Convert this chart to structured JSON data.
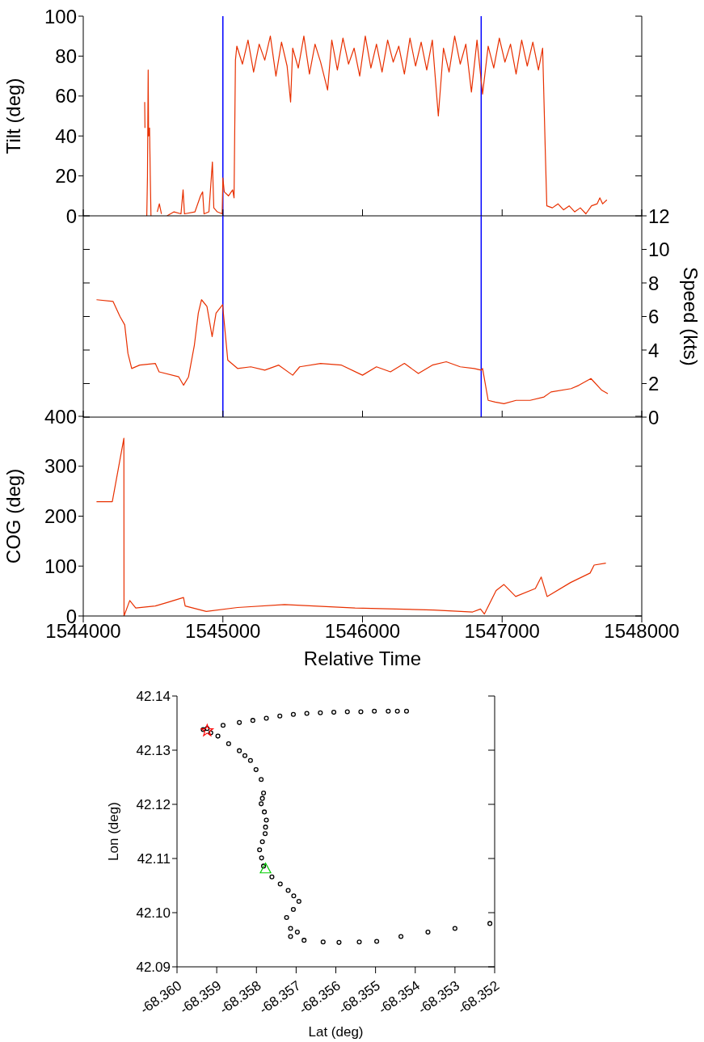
{
  "chart_data": [
    {
      "type": "line",
      "ylabel": "Tilt (deg)",
      "xlim": [
        1544000,
        1548000
      ],
      "xticks": [
        1544000,
        1545000,
        1546000,
        1547000,
        1548000
      ],
      "ylim": [
        0,
        100
      ],
      "yticks": [
        0,
        20,
        40,
        60,
        80,
        100
      ],
      "tick_labels": "y",
      "series": [
        {
          "color": "#e83000",
          "x": [
            1544440,
            1544442,
            1544444,
            1544455,
            1544460,
            1544465,
            1544468,
            1544475,
            1544480,
            1544485,
            1544500,
            1544530,
            1544545,
            1544560,
            1544580,
            1544600,
            1544650,
            1544700,
            1544715,
            1544725,
            1544800,
            1544840,
            1544855,
            1544865,
            1544900,
            1544925,
            1544935,
            1544960,
            1544995,
            1545000,
            1545010,
            1545040,
            1545070,
            1545080,
            1545090,
            1545100,
            1545140,
            1545180,
            1545220,
            1545260,
            1545300,
            1545340,
            1545380,
            1545420,
            1545460,
            1545485,
            1545500,
            1545540,
            1545580,
            1545620,
            1545660,
            1545700,
            1545750,
            1545780,
            1545820,
            1545860,
            1545900,
            1545940,
            1545980,
            1546020,
            1546060,
            1546100,
            1546140,
            1546180,
            1546220,
            1546260,
            1546300,
            1546340,
            1546380,
            1546420,
            1546460,
            1546500,
            1546543,
            1546580,
            1546620,
            1546660,
            1546700,
            1546740,
            1546780,
            1546820,
            1546860,
            1546900,
            1546940,
            1546980,
            1547020,
            1547060,
            1547100,
            1547140,
            1547180,
            1547220,
            1547260,
            1547290,
            1547310,
            1547320,
            1547360,
            1547400,
            1547440,
            1547480,
            1547520,
            1547560,
            1547600,
            1547640,
            1547680,
            1547700,
            1547720,
            1547750
          ],
          "values": [
            57,
            44,
            null,
            0,
            20,
            73,
            40,
            44,
            20,
            0,
            null,
            2,
            6,
            1,
            null,
            0,
            2,
            1,
            13,
            1,
            2,
            10,
            12,
            1,
            2,
            27,
            4,
            2,
            1,
            19,
            12,
            10,
            13,
            9,
            78,
            85,
            76,
            88,
            72,
            86,
            78,
            90,
            70,
            87,
            75,
            57,
            84,
            74,
            90,
            71,
            86,
            77,
            63,
            88,
            73,
            89,
            76,
            84,
            70,
            90,
            74,
            86,
            72,
            88,
            77,
            85,
            71,
            89,
            75,
            87,
            73,
            88,
            50,
            84,
            72,
            90,
            76,
            86,
            62,
            88,
            61,
            85,
            74,
            89,
            77,
            86,
            71,
            88,
            75,
            87,
            73,
            84,
            30,
            5,
            4,
            6,
            3,
            5,
            2,
            4,
            1,
            5,
            6,
            9,
            6,
            8
          ]
        }
      ],
      "ref_lines": [
        {
          "axis": "x",
          "value": 1545000,
          "color": "#0000ff"
        },
        {
          "axis": "x",
          "value": 1546850,
          "color": "#0000ff"
        }
      ]
    },
    {
      "type": "line",
      "ylabel": "Speed (kts)",
      "xlim": [
        1544000,
        1548000
      ],
      "xticks": [
        1544000,
        1545000,
        1546000,
        1547000,
        1548000
      ],
      "ylim": [
        0,
        12
      ],
      "yticks": [
        0,
        2,
        4,
        6,
        8,
        10,
        12
      ],
      "tick_labels": "y",
      "series": [
        {
          "color": "#e83000",
          "x": [
            1544095,
            1544213,
            1544263,
            1544297,
            1544320,
            1544347,
            1544404,
            1544516,
            1544543,
            1544684,
            1544718,
            1544754,
            1544796,
            1544824,
            1544847,
            1544886,
            1544923,
            1544951,
            1544998,
            1545035,
            1545105,
            1545200,
            1545300,
            1545400,
            1545500,
            1545550,
            1545700,
            1545850,
            1546000,
            1546100,
            1546200,
            1546300,
            1546400,
            1546500,
            1546600,
            1546700,
            1546800,
            1546850,
            1546860,
            1546900,
            1546950,
            1547013,
            1547100,
            1547200,
            1547300,
            1547350,
            1547494,
            1547550,
            1547636,
            1547714,
            1547757
          ],
          "values": [
            7.0,
            6.9,
            6.0,
            5.5,
            3.8,
            2.9,
            3.1,
            3.2,
            2.7,
            2.4,
            1.9,
            2.4,
            4.3,
            6.2,
            7.0,
            6.6,
            4.8,
            6.2,
            6.7,
            3.4,
            2.9,
            3.0,
            2.8,
            3.1,
            2.5,
            3.0,
            3.2,
            3.1,
            2.5,
            3.0,
            2.7,
            3.2,
            2.6,
            3.1,
            3.3,
            3.0,
            2.9,
            2.8,
            2.9,
            1.0,
            0.9,
            0.8,
            1.0,
            1.0,
            1.2,
            1.5,
            1.7,
            1.9,
            2.3,
            1.6,
            1.4
          ]
        }
      ],
      "ref_lines": [
        {
          "axis": "x",
          "value": 1545000,
          "color": "#0000ff"
        },
        {
          "axis": "x",
          "value": 1546850,
          "color": "#0000ff"
        }
      ]
    },
    {
      "type": "line",
      "ylabel": "COG (deg)",
      "xlabel": "Relative Time",
      "xlim": [
        1544000,
        1548000
      ],
      "xticks": [
        1544000,
        1545000,
        1546000,
        1547000,
        1548000
      ],
      "ylim": [
        0,
        400
      ],
      "yticks": [
        0,
        100,
        200,
        300,
        400
      ],
      "series": [
        {
          "color": "#e83000",
          "x": [
            1544095,
            1544208,
            1544291,
            1544292,
            1544333,
            1544376,
            1544516,
            1544600,
            1544718,
            1544730,
            1544881,
            1545105,
            1545442,
            1545947,
            1546508,
            1546789,
            1546845,
            1546873,
            1546957,
            1547013,
            1547097,
            1547238,
            1547280,
            1547322,
            1547490,
            1547630,
            1547659,
            1547743
          ],
          "values": [
            229,
            229,
            356,
            0,
            31,
            16,
            20,
            27,
            37,
            20,
            9,
            17,
            23,
            16,
            12,
            8,
            14,
            4,
            51,
            63,
            39,
            55,
            78,
            39,
            67,
            86,
            102,
            106
          ]
        }
      ]
    },
    {
      "type": "scatter",
      "xlabel": "Lat (deg)",
      "ylabel": "Lon (deg)",
      "xlim": [
        -68.36,
        -68.352
      ],
      "xticks": [
        {
          "value": -68.36,
          "label": "-68.360"
        },
        -68.359,
        -68.358,
        -68.357,
        -68.356,
        -68.355,
        -68.354,
        -68.353,
        -68.352
      ],
      "ylim": [
        42.09,
        42.14
      ],
      "yticks": [
        {
          "value": 42.09,
          "label": "42.09"
        },
        {
          "value": 42.1,
          "label": "42.10"
        },
        42.11,
        42.12,
        42.13,
        42.14
      ],
      "series": [
        {
          "color": "#000000",
          "marker": "circle",
          "x": [
            -68.35422,
            -68.35445,
            -68.35468,
            -68.35503,
            -68.35537,
            -68.35571,
            -68.35605,
            -68.35639,
            -68.35673,
            -68.35707,
            -68.35741,
            -68.35775,
            -68.35809,
            -68.35843,
            -68.35884,
            -68.35924,
            -68.35934,
            -68.35915,
            -68.35897,
            -68.3587,
            -68.35843,
            -68.35829,
            -68.35815,
            -68.35801,
            -68.35788,
            -68.35782,
            -68.35785,
            -68.35788,
            -68.3578,
            -68.35775,
            -68.35777,
            -68.35778,
            -68.35785,
            -68.35792,
            -68.35787,
            -68.35782,
            -68.35761,
            -68.3574,
            -68.3572,
            -68.35706,
            -68.35693,
            -68.35707,
            -68.35724,
            -68.35714,
            -68.35697,
            -68.35714,
            -68.3568,
            -68.35632,
            -68.35592,
            -68.35541,
            -68.35497,
            -68.35436,
            -68.35368,
            -68.353,
            -68.35212
          ],
          "values": [
            42.1372,
            42.1372,
            42.1372,
            42.1372,
            42.1371,
            42.1371,
            42.137,
            42.1369,
            42.1368,
            42.1366,
            42.1363,
            42.1359,
            42.1355,
            42.1351,
            42.1346,
            42.134,
            42.1338,
            42.1332,
            42.1326,
            42.1312,
            42.1299,
            42.129,
            42.1281,
            42.1264,
            42.1246,
            42.1221,
            42.1211,
            42.1201,
            42.1186,
            42.1171,
            42.1158,
            42.1146,
            42.1131,
            42.1116,
            42.1101,
            42.1086,
            42.1066,
            42.1053,
            42.1041,
            42.1031,
            42.1021,
            42.1006,
            42.0991,
            42.0971,
            42.0964,
            42.0956,
            42.0949,
            42.0946,
            42.0945,
            42.0946,
            42.0947,
            42.0956,
            42.0964,
            42.0971,
            42.098
          ]
        },
        {
          "color": "#ff0000",
          "marker": "star",
          "x": [
            -68.35924
          ],
          "values": [
            42.1336
          ]
        },
        {
          "color": "#00cc00",
          "marker": "triangle",
          "x": [
            -68.35777
          ],
          "values": [
            42.1081
          ]
        }
      ]
    }
  ]
}
